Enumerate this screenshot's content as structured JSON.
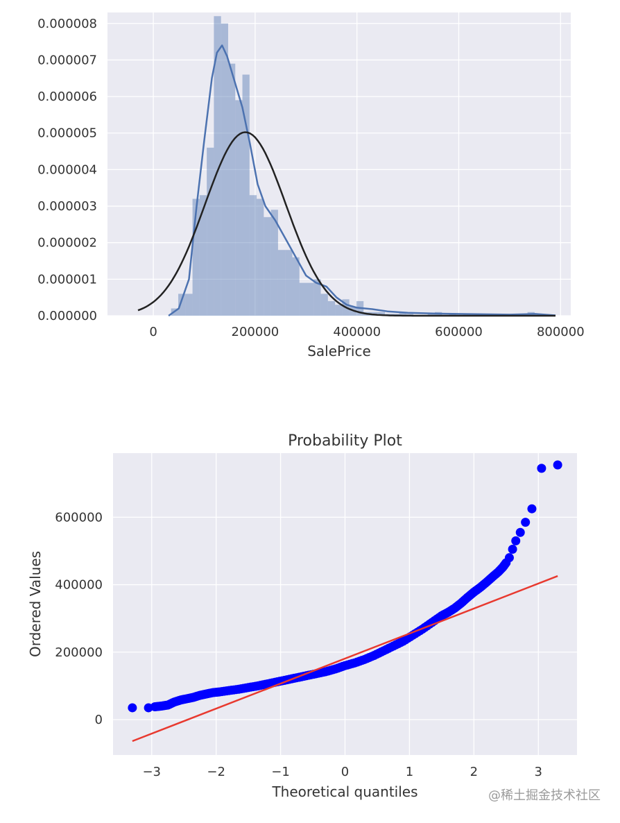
{
  "colors": {
    "background": "#eaeaf2",
    "grid": "#ffffff",
    "hist": "#4c72b0",
    "kde": "#4c72b0",
    "normfit": "#222222",
    "points": "#0000ff",
    "fitline": "#e8392f"
  },
  "chart_data": [
    {
      "type": "histogram",
      "xlabel": "SalePrice",
      "ylabel": "",
      "xlim": [
        -90000,
        820000
      ],
      "ylim": [
        0,
        8.3e-06
      ],
      "grid": true,
      "xticks": [
        0,
        200000,
        400000,
        600000,
        800000
      ],
      "xtick_labels": [
        "0",
        "200000",
        "400000",
        "600000",
        "800000"
      ],
      "yticks": [
        0,
        1e-06,
        2e-06,
        3e-06,
        4e-06,
        5e-06,
        6e-06,
        7e-06,
        8e-06
      ],
      "ytick_labels": [
        "0.000000",
        "0.000001",
        "0.000002",
        "0.000003",
        "0.000004",
        "0.000005",
        "0.000006",
        "0.000007",
        "0.000008"
      ],
      "bins": [
        {
          "x0": 34900,
          "x1": 49000,
          "density": 2e-07
        },
        {
          "x0": 49000,
          "x1": 63000,
          "density": 6e-07
        },
        {
          "x0": 63000,
          "x1": 77000,
          "density": 6e-07
        },
        {
          "x0": 77000,
          "x1": 91000,
          "density": 3.2e-06
        },
        {
          "x0": 91000,
          "x1": 105000,
          "density": 3.3e-06
        },
        {
          "x0": 105000,
          "x1": 119000,
          "density": 4.6e-06
        },
        {
          "x0": 119000,
          "x1": 133000,
          "density": 8.2e-06
        },
        {
          "x0": 133000,
          "x1": 147000,
          "density": 8e-06
        },
        {
          "x0": 147000,
          "x1": 161000,
          "density": 6.9e-06
        },
        {
          "x0": 161000,
          "x1": 175000,
          "density": 5.9e-06
        },
        {
          "x0": 175000,
          "x1": 189000,
          "density": 6.6e-06
        },
        {
          "x0": 189000,
          "x1": 203000,
          "density": 3.3e-06
        },
        {
          "x0": 203000,
          "x1": 217000,
          "density": 3.2e-06
        },
        {
          "x0": 217000,
          "x1": 231000,
          "density": 2.7e-06
        },
        {
          "x0": 231000,
          "x1": 245000,
          "density": 2.9e-06
        },
        {
          "x0": 245000,
          "x1": 259000,
          "density": 1.8e-06
        },
        {
          "x0": 259000,
          "x1": 273000,
          "density": 1.8e-06
        },
        {
          "x0": 273000,
          "x1": 287000,
          "density": 1.6e-06
        },
        {
          "x0": 287000,
          "x1": 301000,
          "density": 9e-07
        },
        {
          "x0": 301000,
          "x1": 315000,
          "density": 9e-07
        },
        {
          "x0": 315000,
          "x1": 329000,
          "density": 1e-06
        },
        {
          "x0": 329000,
          "x1": 343000,
          "density": 6e-07
        },
        {
          "x0": 343000,
          "x1": 357000,
          "density": 4e-07
        },
        {
          "x0": 357000,
          "x1": 371000,
          "density": 3e-07
        },
        {
          "x0": 371000,
          "x1": 385000,
          "density": 4.5e-07
        },
        {
          "x0": 385000,
          "x1": 399000,
          "density": 2.5e-07
        },
        {
          "x0": 399000,
          "x1": 413000,
          "density": 4e-07
        },
        {
          "x0": 413000,
          "x1": 427000,
          "density": 1e-07
        },
        {
          "x0": 427000,
          "x1": 441000,
          "density": 1e-07
        },
        {
          "x0": 441000,
          "x1": 455000,
          "density": 1e-07
        },
        {
          "x0": 455000,
          "x1": 469000,
          "density": 5e-08
        },
        {
          "x0": 469000,
          "x1": 483000,
          "density": 5e-08
        },
        {
          "x0": 483000,
          "x1": 497000,
          "density": 1e-07
        },
        {
          "x0": 497000,
          "x1": 511000,
          "density": 5e-08
        },
        {
          "x0": 539000,
          "x1": 553000,
          "density": 5e-08
        },
        {
          "x0": 553000,
          "x1": 567000,
          "density": 1e-07
        },
        {
          "x0": 581000,
          "x1": 595000,
          "density": 5e-08
        },
        {
          "x0": 609000,
          "x1": 623000,
          "density": 5e-08
        },
        {
          "x0": 735000,
          "x1": 749000,
          "density": 1e-07
        },
        {
          "x0": 749000,
          "x1": 763000,
          "density": 5e-08
        }
      ],
      "kde": {
        "x": [
          30000,
          50000,
          70000,
          85000,
          100000,
          115000,
          125000,
          135000,
          145000,
          160000,
          175000,
          190000,
          205000,
          220000,
          240000,
          260000,
          280000,
          300000,
          320000,
          340000,
          360000,
          380000,
          400000,
          430000,
          460000,
          500000,
          550000,
          600000,
          650000,
          700000,
          750000,
          790000
        ],
        "y": [
          0.0,
          2e-07,
          1e-06,
          3e-06,
          4.8e-06,
          6.5e-06,
          7.2e-06,
          7.4e-06,
          7.1e-06,
          6.4e-06,
          5.7e-06,
          4.7e-06,
          3.6e-06,
          3e-06,
          2.6e-06,
          2.1e-06,
          1.6e-06,
          1.1e-06,
          9e-07,
          8e-07,
          5e-07,
          3e-07,
          2.2e-07,
          1.8e-07,
          1.2e-07,
          8e-08,
          6e-08,
          5e-08,
          4e-08,
          3e-08,
          5e-08,
          1e-08
        ]
      },
      "normal_fit": {
        "mean": 180921,
        "std": 79415
      }
    },
    {
      "type": "scatter",
      "title": "Probability Plot",
      "xlabel": "Theoretical quantiles",
      "ylabel": "Ordered Values",
      "xlim": [
        -3.6,
        3.6
      ],
      "ylim": [
        -105000,
        790000
      ],
      "grid": true,
      "xticks": [
        -3,
        -2,
        -1,
        0,
        1,
        2,
        3
      ],
      "xtick_labels": [
        "−3",
        "−2",
        "−1",
        "0",
        "1",
        "2",
        "3"
      ],
      "yticks": [
        0,
        200000,
        400000,
        600000
      ],
      "ytick_labels": [
        "0",
        "200000",
        "400000",
        "600000"
      ],
      "fit_line": {
        "slope": 74160,
        "intercept": 180921,
        "x_range": [
          -3.3,
          3.3
        ]
      },
      "points": {
        "x": [
          -3.3,
          -3.05,
          -2.95,
          -2.85,
          -2.75,
          -2.65,
          -2.55,
          -2.45,
          -2.35,
          -2.25,
          -2.15,
          -2.05,
          -1.95,
          -1.8,
          -1.65,
          -1.5,
          -1.35,
          -1.2,
          -1.05,
          -0.9,
          -0.75,
          -0.6,
          -0.45,
          -0.3,
          -0.15,
          0.0,
          0.15,
          0.3,
          0.45,
          0.6,
          0.75,
          0.9,
          1.05,
          1.2,
          1.35,
          1.5,
          1.6,
          1.7,
          1.8,
          1.9,
          2.0,
          2.1,
          2.2,
          2.3,
          2.38,
          2.45,
          2.5,
          2.55,
          2.6,
          2.65,
          2.72,
          2.8,
          2.9,
          3.05,
          3.3
        ],
        "y": [
          35000,
          35000,
          38000,
          40000,
          43000,
          52000,
          58000,
          62000,
          66000,
          72000,
          76000,
          80000,
          82000,
          86000,
          90000,
          95000,
          100000,
          106000,
          112000,
          118000,
          124000,
          130000,
          136000,
          142000,
          150000,
          160000,
          168000,
          178000,
          190000,
          204000,
          218000,
          232000,
          250000,
          268000,
          288000,
          308000,
          318000,
          330000,
          345000,
          362000,
          378000,
          392000,
          408000,
          425000,
          438000,
          452000,
          465000,
          480000,
          505000,
          530000,
          555000,
          585000,
          625000,
          745000,
          755000
        ]
      }
    }
  ],
  "watermark": "@稀土掘金技术社区"
}
